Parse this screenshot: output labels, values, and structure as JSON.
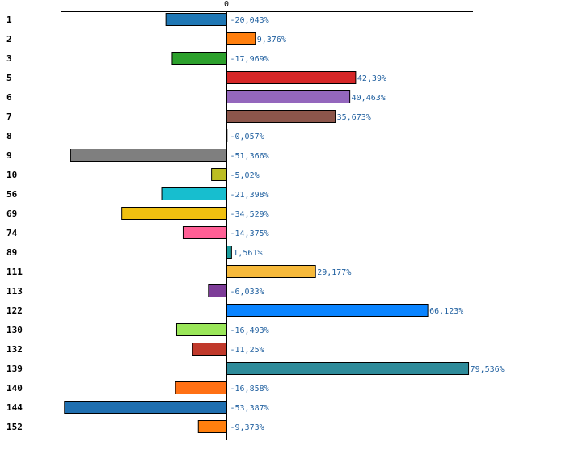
{
  "chart_data": {
    "type": "bar",
    "orientation": "horizontal",
    "zero_tick_label": "0",
    "xlim": [
      -67,
      83
    ],
    "categories": [
      "1",
      "2",
      "3",
      "5",
      "6",
      "7",
      "8",
      "9",
      "10",
      "56",
      "69",
      "74",
      "89",
      "111",
      "113",
      "122",
      "130",
      "132",
      "139",
      "140",
      "144",
      "152"
    ],
    "values": [
      -20.043,
      9.376,
      -17.969,
      42.39,
      40.463,
      35.673,
      -0.057,
      -51.366,
      -5.02,
      -21.398,
      -34.529,
      -14.375,
      1.561,
      29.177,
      -6.033,
      66.123,
      -16.493,
      -11.25,
      79.536,
      -16.858,
      -53.387,
      -9.373
    ],
    "value_labels": [
      "-20,043%",
      "9,376%",
      "-17,969%",
      "42,39%",
      "40,463%",
      "35,673%",
      "-0,057%",
      "-51,366%",
      "-5,02%",
      "-21,398%",
      "-34,529%",
      "-14,375%",
      "1,561%",
      "29,177%",
      "-6,033%",
      "66,123%",
      "-16,493%",
      "-11,25%",
      "79,536%",
      "-16,858%",
      "-53,387%",
      "-9,373%"
    ],
    "colors": [
      "#1f77b4",
      "#ff7f0e",
      "#2ca02c",
      "#d62728",
      "#9467bd",
      "#8c564b",
      "#e377c2",
      "#7f7f7f",
      "#bcbd22",
      "#17becf",
      "#f0c010",
      "#ff5f95",
      "#1b9e9e",
      "#f6b93b",
      "#7d3c98",
      "#0a84ff",
      "#9ae659",
      "#c0392b",
      "#2e8b9a",
      "#ff7014",
      "#1f6fb0",
      "#ff7f0e"
    ]
  }
}
